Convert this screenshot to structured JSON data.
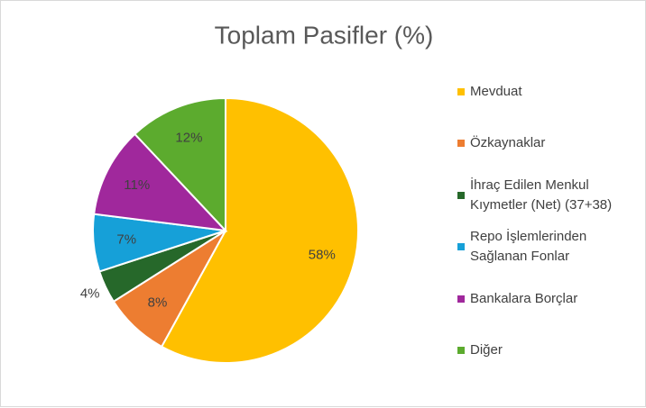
{
  "chart_data": {
    "type": "pie",
    "title": "Toplam Pasifler (%)",
    "categories": [
      "Mevduat",
      "Özkaynaklar",
      "İhraç Edilen Menkul Kıymetler (Net) (37+38)",
      "Repo İşlemlerinden Sağlanan Fonlar",
      "Bankalara Borçlar",
      "Diğer"
    ],
    "values": [
      58,
      8,
      4,
      7,
      11,
      12
    ],
    "value_labels": [
      "58%",
      "8%",
      "4%",
      "7%",
      "11%",
      "12%"
    ],
    "colors": [
      "#ffc000",
      "#ed7d31",
      "#26682a",
      "#16a0d8",
      "#a0289c",
      "#5cab2e"
    ],
    "legend": "right"
  }
}
